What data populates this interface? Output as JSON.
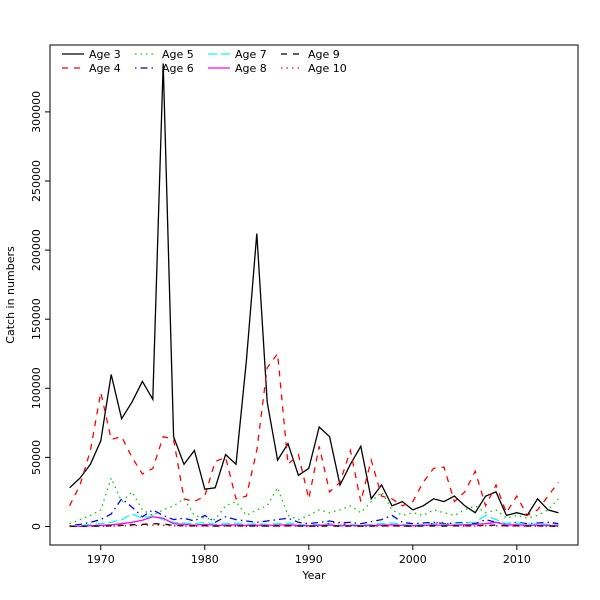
{
  "chart_data": {
    "type": "line",
    "title": "",
    "xlabel": "Year",
    "ylabel": "Catch in numbers",
    "x_range": [
      1967,
      2014
    ],
    "y_range": [
      0,
      335000
    ],
    "x_ticks": [
      1970,
      1980,
      1990,
      2000,
      2010
    ],
    "y_ticks": [
      0,
      50000,
      100000,
      150000,
      200000,
      250000,
      300000
    ],
    "grid": false,
    "legend_position": "top-left-inside",
    "legend_columns": 4,
    "years": [
      1967,
      1968,
      1969,
      1970,
      1971,
      1972,
      1973,
      1974,
      1975,
      1976,
      1977,
      1978,
      1979,
      1980,
      1981,
      1982,
      1983,
      1984,
      1985,
      1986,
      1987,
      1988,
      1989,
      1990,
      1991,
      1992,
      1993,
      1994,
      1995,
      1996,
      1997,
      1998,
      1999,
      2000,
      2001,
      2002,
      2003,
      2004,
      2005,
      2006,
      2007,
      2008,
      2009,
      2010,
      2011,
      2012,
      2013,
      2014
    ],
    "series": [
      {
        "name": "Age 3",
        "color": "#000000",
        "linetype": "solid",
        "values": [
          28000,
          35000,
          45000,
          62000,
          110000,
          78000,
          90000,
          105000,
          92000,
          335000,
          65000,
          45000,
          55000,
          27000,
          28000,
          52000,
          45000,
          120000,
          212000,
          90000,
          48000,
          60000,
          37000,
          42000,
          72000,
          65000,
          30000,
          45000,
          58000,
          20000,
          30000,
          15000,
          18000,
          12000,
          15000,
          20000,
          18000,
          22000,
          15000,
          10000,
          22000,
          25000,
          8000,
          10000,
          8000,
          20000,
          12000,
          10000
        ]
      },
      {
        "name": "Age 4",
        "color": "#ff0000",
        "linetype": "dashed",
        "values": [
          15000,
          30000,
          55000,
          97000,
          63000,
          65000,
          50000,
          38000,
          42000,
          65000,
          63000,
          20000,
          18000,
          22000,
          47000,
          50000,
          20000,
          22000,
          55000,
          115000,
          125000,
          45000,
          52000,
          20000,
          58000,
          25000,
          32000,
          55000,
          18000,
          48000,
          22000,
          20000,
          15000,
          18000,
          32000,
          42000,
          43000,
          18000,
          25000,
          40000,
          15000,
          30000,
          10000,
          22000,
          8000,
          12000,
          22000,
          32000
        ]
      },
      {
        "name": "Age 5",
        "color": "#00cd00",
        "linetype": "dotted",
        "values": [
          2000,
          5000,
          8000,
          12000,
          35000,
          18000,
          25000,
          12000,
          8000,
          12000,
          15000,
          20000,
          8000,
          6000,
          5000,
          15000,
          18000,
          8000,
          12000,
          15000,
          28000,
          8000,
          5000,
          8000,
          12000,
          10000,
          12000,
          15000,
          10000,
          18000,
          25000,
          12000,
          8000,
          10000,
          8000,
          12000,
          10000,
          8000,
          12000,
          15000,
          10000,
          12000,
          6000,
          8000,
          6000,
          8000,
          12000,
          20000
        ]
      },
      {
        "name": "Age 6",
        "color": "#0000ff",
        "linetype": "dotdash",
        "values": [
          500,
          1500,
          3000,
          5000,
          9000,
          20000,
          14000,
          7000,
          12000,
          8000,
          5000,
          6000,
          4000,
          8000,
          3000,
          7000,
          5000,
          4000,
          3000,
          4000,
          5000,
          6000,
          3000,
          2000,
          3000,
          4000,
          2500,
          3000,
          2000,
          3500,
          5000,
          8000,
          3000,
          2000,
          2500,
          3000,
          2000,
          2500,
          3000,
          2000,
          5000,
          3000,
          2000,
          3000,
          2000,
          2500,
          3000,
          2000
        ]
      },
      {
        "name": "Age 7",
        "color": "#00ffff",
        "linetype": "longdash",
        "values": [
          300,
          800,
          1500,
          2000,
          3000,
          5000,
          9000,
          6000,
          8000,
          5000,
          3000,
          2500,
          2000,
          3000,
          1500,
          2000,
          2500,
          1500,
          2000,
          1500,
          2000,
          2500,
          1500,
          1000,
          1500,
          2000,
          1000,
          1500,
          1000,
          1500,
          2000,
          2500,
          1500,
          1000,
          1500,
          2000,
          1500,
          2000,
          2500,
          3000,
          8000,
          5000,
          2000,
          2500,
          1500,
          2000,
          1500,
          1000
        ]
      },
      {
        "name": "Age 8",
        "color": "#ff00ff",
        "linetype": "solid",
        "values": [
          100,
          300,
          500,
          800,
          1200,
          2000,
          3000,
          4500,
          7000,
          6000,
          2000,
          1500,
          1000,
          1500,
          800,
          1000,
          1200,
          800,
          1000,
          800,
          1000,
          1200,
          800,
          500,
          800,
          1000,
          500,
          800,
          500,
          800,
          1000,
          1200,
          800,
          500,
          800,
          1000,
          800,
          1000,
          1200,
          1500,
          2000,
          3000,
          1000,
          1200,
          800,
          1000,
          800,
          500
        ]
      },
      {
        "name": "Age 9",
        "color": "#000000",
        "linetype": "dashed",
        "values": [
          50,
          100,
          200,
          300,
          500,
          800,
          1200,
          1500,
          2000,
          1800,
          800,
          600,
          400,
          600,
          300,
          400,
          500,
          300,
          400,
          300,
          400,
          500,
          300,
          200,
          300,
          400,
          200,
          300,
          200,
          300,
          400,
          500,
          300,
          200,
          300,
          400,
          300,
          400,
          500,
          600,
          800,
          1000,
          400,
          500,
          300,
          400,
          300,
          200
        ]
      },
      {
        "name": "Age 10",
        "color": "#ff0000",
        "linetype": "dotted",
        "values": [
          20,
          50,
          100,
          150,
          250,
          400,
          600,
          800,
          1000,
          900,
          400,
          300,
          200,
          300,
          150,
          200,
          250,
          150,
          200,
          150,
          200,
          250,
          150,
          100,
          150,
          2500,
          3000,
          200,
          250,
          150,
          200,
          250,
          150,
          100,
          150,
          2500,
          3000,
          200,
          250,
          300,
          400,
          500,
          200,
          250,
          150,
          200,
          150,
          100
        ]
      }
    ]
  }
}
